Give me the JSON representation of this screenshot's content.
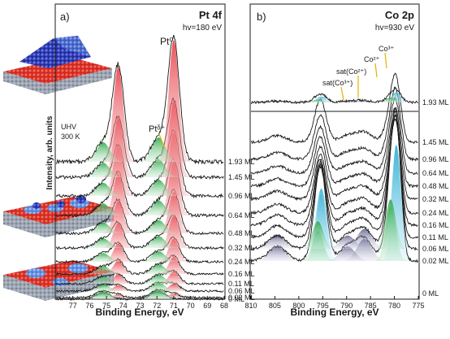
{
  "chart_data": [
    {
      "type": "line",
      "panel_label": "a)",
      "title": "Pt 4f",
      "subtitle": "hv=180 eV",
      "xlabel": "Binding Energy, eV",
      "ylabel": "Intensity, arb. units",
      "xlim": [
        78,
        68
      ],
      "x_reversed": true,
      "x_ticks": [
        77,
        76,
        75,
        74,
        73,
        72,
        71,
        70,
        69,
        68
      ],
      "grid": false,
      "annotations": [
        "Pt⁰",
        "Ptᵟ⁺",
        "UHV",
        "300 K"
      ],
      "coverage_labels": [
        "1.93 ML",
        "1.45 ML",
        "0.96 ML",
        "0.64 ML",
        "0.48 ML",
        "0.32 ML",
        "0.24 ML",
        "0.16 ML",
        "0.11 ML",
        "0.06 ML",
        "0.02 ML",
        "0 ML"
      ],
      "peak_positions_eV": {
        "Pt0_4f7/2": 71.0,
        "Pt0_4f5/2": 74.3,
        "Ptdelta_4f7/2": 71.9,
        "Ptdelta_4f5/2": 75.2
      },
      "peak_heights": [
        1.0,
        0.62,
        0.52,
        0.44,
        0.34,
        0.26,
        0.19,
        0.14,
        0.1,
        0.06,
        0.03,
        0.0
      ],
      "colors": {
        "Pt0": "#e8323c",
        "Ptdelta": "#34b84a",
        "line": "#1a1a1a"
      }
    },
    {
      "type": "line",
      "panel_label": "b)",
      "title": "Co 2p",
      "subtitle": "hv=930 eV",
      "xlabel": "Binding Energy, eV",
      "xlim": [
        810,
        775
      ],
      "x_reversed": true,
      "x_ticks": [
        810,
        805,
        800,
        795,
        790,
        785,
        780,
        775
      ],
      "grid": false,
      "annotations": [
        "Co³⁺",
        "Co²⁺",
        "sat(Co²⁺)",
        "sat(Co³⁺)"
      ],
      "coverage_labels": [
        "1.93 ML",
        "1.45 ML",
        "0.96 ML",
        "0.64 ML",
        "0.48 ML",
        "0.32 ML",
        "0.24 ML",
        "0.16 ML",
        "0.11 ML",
        "0.06 ML",
        "0.02 ML",
        "0 ML"
      ],
      "peak_positions_eV": {
        "Co3+_2p3/2": 779.6,
        "Co2+_2p3/2": 780.8,
        "sat_Co2+": 786.3,
        "sat_Co3+": 789.8,
        "Co_2p1/2": 795.3
      },
      "peak_heights": [
        0.42,
        0.45,
        0.47,
        0.49,
        0.52,
        0.56,
        0.62,
        0.7,
        0.8,
        0.9,
        1.0,
        0.0
      ],
      "colors": {
        "Co3+": "#3fb3d6",
        "Co2+": "#2fa84a",
        "sat": "#5c5c8a",
        "line": "#1a1a1a"
      }
    }
  ],
  "legend_labels": {
    "uhv": "UHV",
    "temp": "300 K"
  }
}
